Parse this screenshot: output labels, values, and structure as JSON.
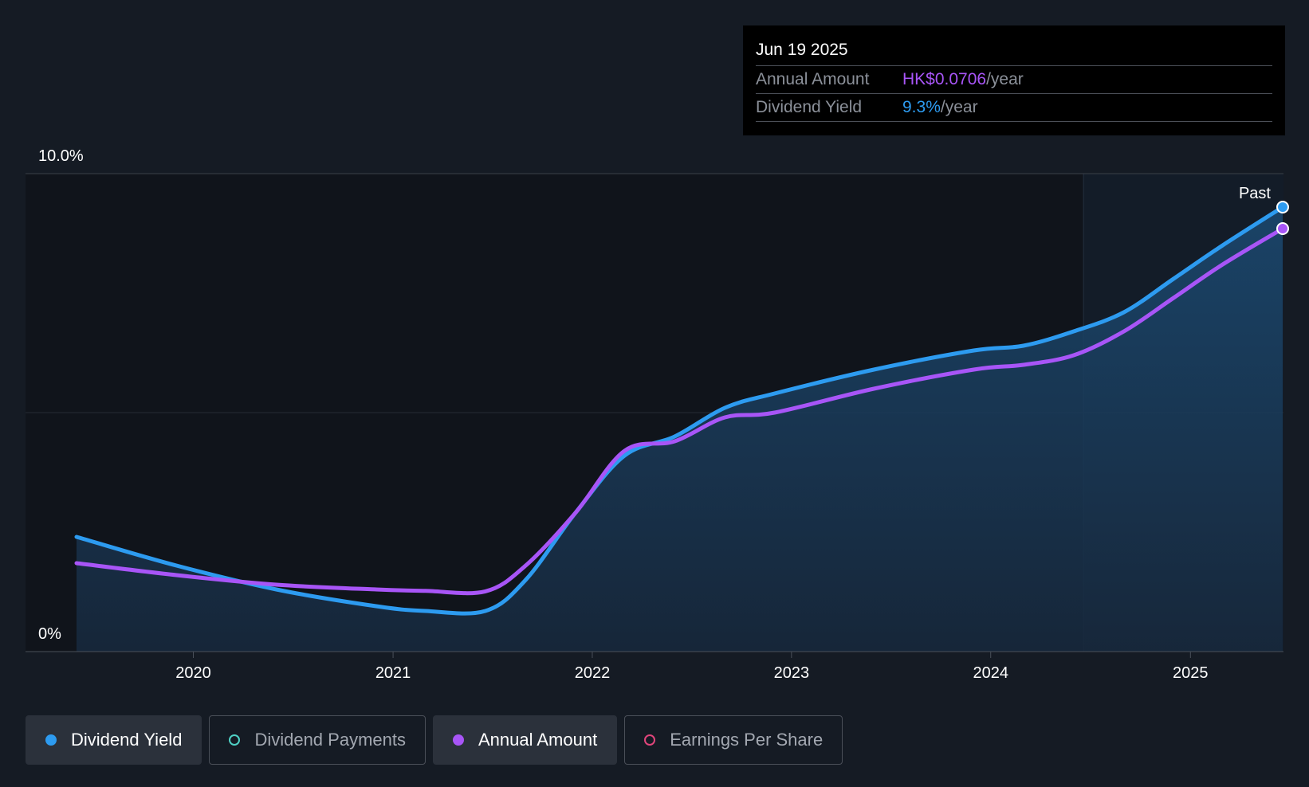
{
  "tooltip": {
    "date": "Jun 19 2025",
    "rows": [
      {
        "label": "Annual Amount",
        "value": "HK$0.0706",
        "unit": "/year"
      },
      {
        "label": "Dividend Yield",
        "value": "9.3%",
        "unit": "/year"
      }
    ]
  },
  "past_label": "Past",
  "legend": [
    {
      "label": "Dividend Yield",
      "color": "#2d9bf0",
      "active": true,
      "filled": true
    },
    {
      "label": "Dividend Payments",
      "color": "#4fd1c5",
      "active": false,
      "filled": false
    },
    {
      "label": "Annual Amount",
      "color": "#a855f7",
      "active": true,
      "filled": true
    },
    {
      "label": "Earnings Per Share",
      "color": "#e0457b",
      "active": false,
      "filled": false
    }
  ],
  "chart_data": {
    "type": "line",
    "y_tick_labels": [
      "0%",
      "10.0%"
    ],
    "ylim": [
      0,
      10
    ],
    "xlim": [
      "2019-06-01",
      "2025-06-19"
    ],
    "x_ticks": [
      "2020",
      "2021",
      "2022",
      "2023",
      "2024",
      "2025"
    ],
    "past_region_start": "2024-06-19",
    "series": [
      {
        "name": "Dividend Yield",
        "color": "#2d9bf0",
        "points": [
          [
            "2019-06-01",
            2.4
          ],
          [
            "2019-12-01",
            1.8
          ],
          [
            "2020-06-01",
            1.3
          ],
          [
            "2020-12-01",
            0.95
          ],
          [
            "2021-03-01",
            0.85
          ],
          [
            "2021-06-19",
            0.85
          ],
          [
            "2021-09-01",
            1.5
          ],
          [
            "2021-12-01",
            2.9
          ],
          [
            "2022-03-01",
            4.1
          ],
          [
            "2022-06-01",
            4.5
          ],
          [
            "2022-09-01",
            5.1
          ],
          [
            "2022-12-01",
            5.4
          ],
          [
            "2023-06-01",
            5.9
          ],
          [
            "2023-12-01",
            6.3
          ],
          [
            "2024-03-01",
            6.4
          ],
          [
            "2024-06-01",
            6.7
          ],
          [
            "2024-09-01",
            7.1
          ],
          [
            "2024-12-01",
            7.8
          ],
          [
            "2025-03-01",
            8.5
          ],
          [
            "2025-06-19",
            9.3
          ]
        ]
      },
      {
        "name": "Annual Amount",
        "color": "#a855f7",
        "points": [
          [
            "2019-06-01",
            1.85
          ],
          [
            "2019-12-01",
            1.6
          ],
          [
            "2020-06-01",
            1.4
          ],
          [
            "2020-12-01",
            1.3
          ],
          [
            "2021-03-01",
            1.27
          ],
          [
            "2021-06-19",
            1.26
          ],
          [
            "2021-09-01",
            1.8
          ],
          [
            "2021-12-01",
            2.9
          ],
          [
            "2022-03-01",
            4.2
          ],
          [
            "2022-06-01",
            4.4
          ],
          [
            "2022-09-01",
            4.9
          ],
          [
            "2022-12-01",
            5.0
          ],
          [
            "2023-06-01",
            5.5
          ],
          [
            "2023-12-01",
            5.9
          ],
          [
            "2024-03-01",
            6.0
          ],
          [
            "2024-06-01",
            6.2
          ],
          [
            "2024-09-01",
            6.7
          ],
          [
            "2024-12-01",
            7.4
          ],
          [
            "2025-03-01",
            8.1
          ],
          [
            "2025-06-19",
            8.85
          ]
        ]
      }
    ]
  }
}
